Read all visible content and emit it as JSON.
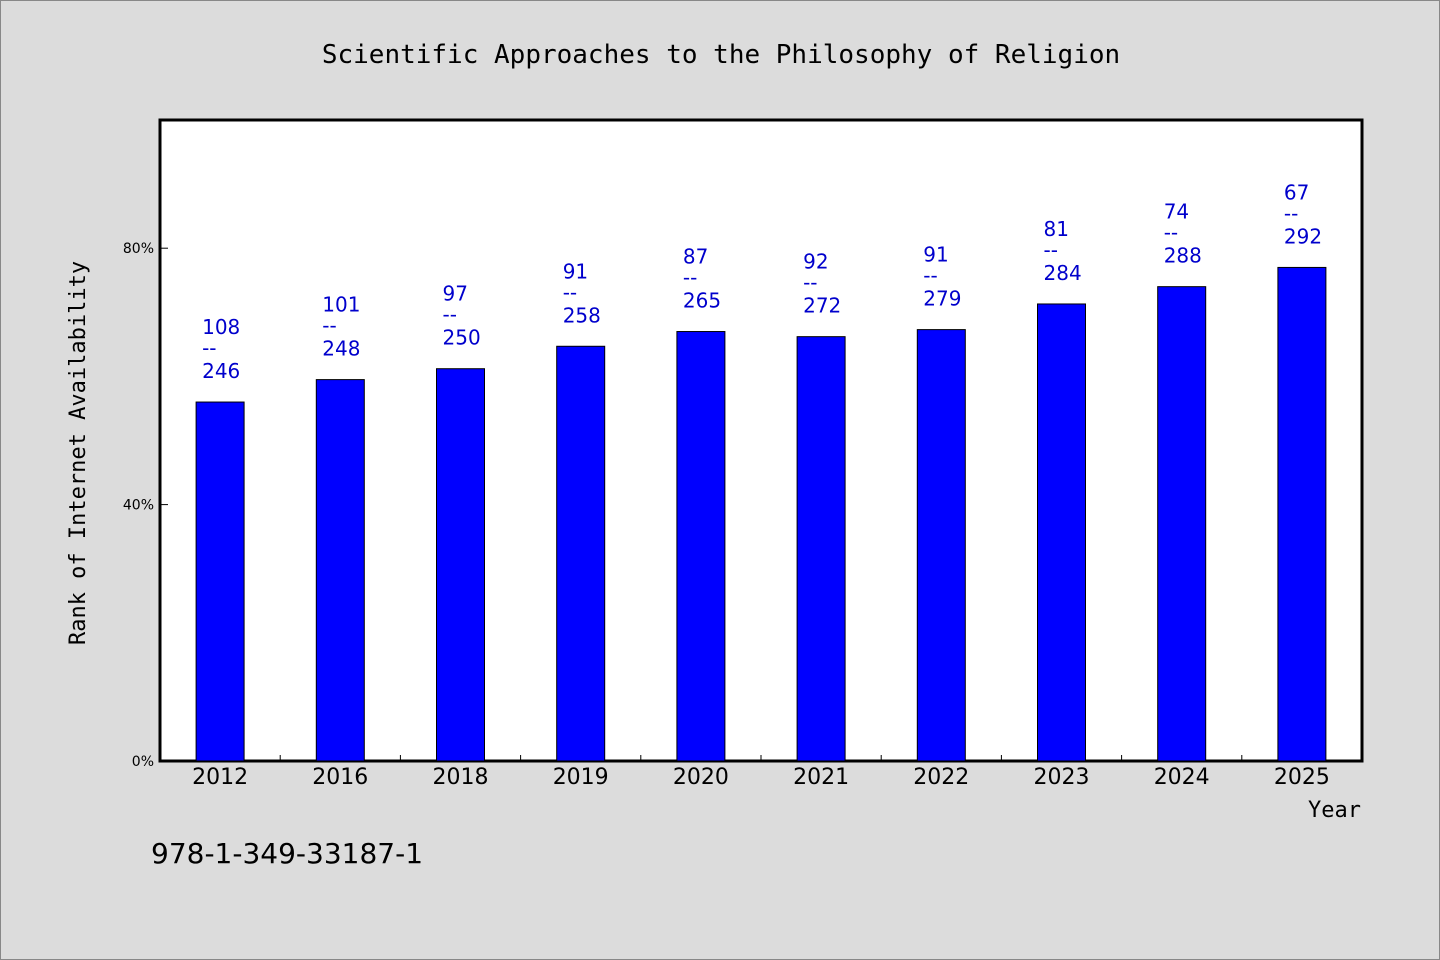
{
  "chart_data": {
    "type": "bar",
    "title": "Scientific Approaches to the Philosophy of Religion",
    "xlabel": "Year",
    "ylabel": "Rank of Internet Availability",
    "categories": [
      "2012",
      "2016",
      "2018",
      "2019",
      "2020",
      "2021",
      "2022",
      "2023",
      "2024",
      "2025"
    ],
    "values": [
      56.0,
      59.5,
      61.2,
      64.7,
      67.0,
      66.2,
      67.3,
      71.3,
      74.0,
      77.0
    ],
    "value_unit": "%",
    "ylim": [
      0,
      100
    ],
    "yticks": [
      0,
      40,
      80
    ],
    "ytick_labels": [
      "0%",
      "40%",
      "80%"
    ],
    "data_labels": [
      {
        "top": "108",
        "sep": "--",
        "bottom": "246"
      },
      {
        "top": "101",
        "sep": "--",
        "bottom": "248"
      },
      {
        "top": "97",
        "sep": "--",
        "bottom": "250"
      },
      {
        "top": "91",
        "sep": "--",
        "bottom": "258"
      },
      {
        "top": "87",
        "sep": "--",
        "bottom": "265"
      },
      {
        "top": "92",
        "sep": "--",
        "bottom": "272"
      },
      {
        "top": "91",
        "sep": "--",
        "bottom": "279"
      },
      {
        "top": "81",
        "sep": "--",
        "bottom": "284"
      },
      {
        "top": "74",
        "sep": "--",
        "bottom": "288"
      },
      {
        "top": "67",
        "sep": "--",
        "bottom": "292"
      }
    ],
    "grid": false,
    "bar_color": "#0000ff",
    "label_color": "#0000cc",
    "plot_background": "#ffffff",
    "page_background": "#dcdcdc"
  },
  "footer": {
    "isbn": "978-1-349-33187-1"
  }
}
